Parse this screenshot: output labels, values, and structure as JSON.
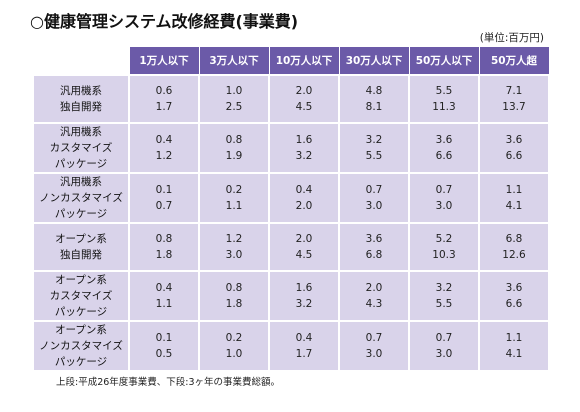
{
  "title": "○健康管理システム改修経費(事業費)",
  "unit": "(単位:百万円)",
  "columns": [
    "1万人以下",
    "3万人以下",
    "10万人以下",
    "30万人以下",
    "50万人以下",
    "50万人超"
  ],
  "rows": [
    {
      "lines": [
        "汎用機系",
        "独自開発"
      ],
      "top": [
        "0.6",
        "1.0",
        "2.0",
        "4.8",
        "5.5",
        "7.1"
      ],
      "bottom": [
        "1.7",
        "2.5",
        "4.5",
        "8.1",
        "11.3",
        "13.7"
      ]
    },
    {
      "lines": [
        "汎用機系",
        "カスタマイズ",
        "パッケージ"
      ],
      "top": [
        "0.4",
        "0.8",
        "1.6",
        "3.2",
        "3.6",
        "3.6"
      ],
      "bottom": [
        "1.2",
        "1.9",
        "3.2",
        "5.5",
        "6.6",
        "6.6"
      ]
    },
    {
      "lines": [
        "汎用機系",
        "ノンカスタマイズ",
        "パッケージ"
      ],
      "top": [
        "0.1",
        "0.2",
        "0.4",
        "0.7",
        "0.7",
        "1.1"
      ],
      "bottom": [
        "0.7",
        "1.1",
        "2.0",
        "3.0",
        "3.0",
        "4.1"
      ]
    },
    {
      "lines": [
        "オープン系",
        "独自開発"
      ],
      "top": [
        "0.8",
        "1.2",
        "2.0",
        "3.6",
        "5.2",
        "6.8"
      ],
      "bottom": [
        "1.8",
        "3.0",
        "4.5",
        "6.8",
        "10.3",
        "12.6"
      ]
    },
    {
      "lines": [
        "オープン系",
        "カスタマイズ",
        "パッケージ"
      ],
      "top": [
        "0.4",
        "0.8",
        "1.6",
        "2.0",
        "3.2",
        "3.6"
      ],
      "bottom": [
        "1.1",
        "1.8",
        "3.2",
        "4.3",
        "5.5",
        "6.6"
      ]
    },
    {
      "lines": [
        "オープン系",
        "ノンカスタマイズ",
        "パッケージ"
      ],
      "top": [
        "0.1",
        "0.2",
        "0.4",
        "0.7",
        "0.7",
        "1.1"
      ],
      "bottom": [
        "0.5",
        "1.0",
        "1.7",
        "3.0",
        "3.0",
        "4.1"
      ]
    }
  ],
  "note": "上段:平成26年度事業費、下段:3ヶ年の事業費総額。"
}
